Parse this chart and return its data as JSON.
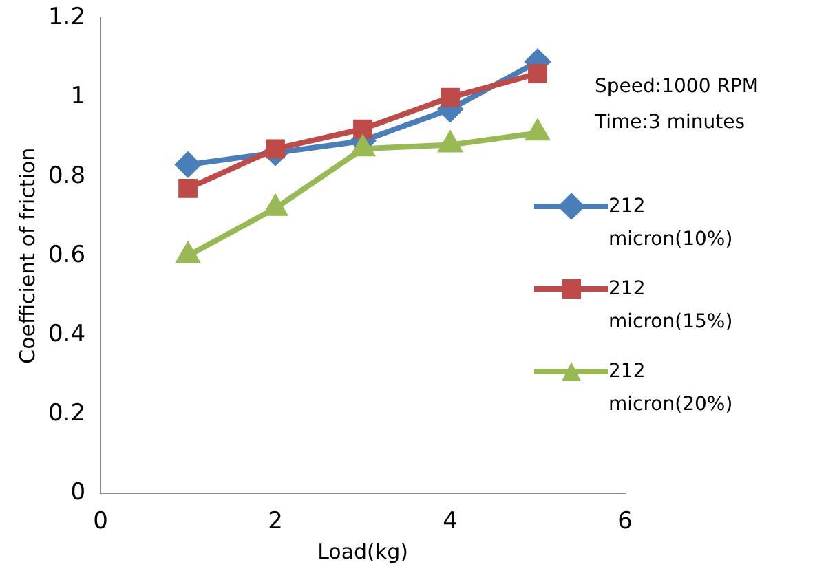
{
  "chart_data": {
    "type": "line",
    "xlabel": "Load(kg)",
    "ylabel": "Coefficient of friction",
    "x": [
      1,
      2,
      3,
      4,
      5
    ],
    "xlim": [
      0,
      6
    ],
    "xticks": [
      0,
      2,
      4,
      6
    ],
    "ylim": [
      0,
      1.2
    ],
    "yticks": [
      0,
      0.2,
      0.4,
      0.6,
      0.8,
      1,
      1.2
    ],
    "grid": false,
    "legend": "right",
    "annotations": [
      "Speed:1000 RPM",
      "Time:3 minutes"
    ],
    "series": [
      {
        "name": "212 micron(10%)",
        "color": "#4a7ebb",
        "marker": "diamond",
        "values": [
          0.83,
          0.86,
          0.89,
          0.97,
          1.09
        ]
      },
      {
        "name": "212 micron(15%)",
        "color": "#be4b48",
        "marker": "square",
        "values": [
          0.77,
          0.87,
          0.92,
          1.0,
          1.06
        ]
      },
      {
        "name": "212 micron(20%)",
        "color": "#98b954",
        "marker": "triangle",
        "values": [
          0.6,
          0.72,
          0.87,
          0.88,
          0.91
        ]
      }
    ]
  }
}
